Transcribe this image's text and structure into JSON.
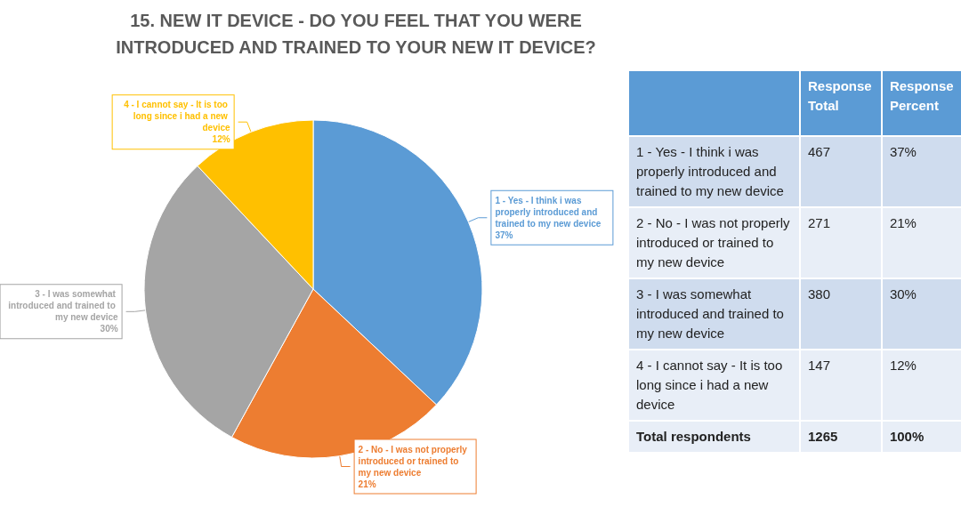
{
  "chart_data": [
    {
      "type": "pie",
      "title": "15. NEW IT DEVICE - DO YOU FEEL THAT YOU WERE INTRODUCED AND TRAINED TO YOUR NEW IT DEVICE?",
      "categories": [
        "1 - Yes - I think i was properly introduced and trained to my new device",
        "2 - No - I was not properly introduced or trained to my new device",
        "3 - I was somewhat introduced and trained to my new device",
        "4 - I cannot say - It is too long since i had a new device"
      ],
      "values": [
        37,
        21,
        30,
        12
      ],
      "value_labels": [
        "37%",
        "21%",
        "30%",
        "12%"
      ],
      "colors": [
        "#5b9bd5",
        "#ed7d31",
        "#a5a5a5",
        "#ffc000"
      ],
      "data_labels": true,
      "legend": false
    },
    {
      "type": "other",
      "categories": [
        "1 - Yes - I think i was properly introduced and trained to my new device",
        "2 - No - I was not properly introduced or trained to my new device",
        "3 - I was somewhat introduced and trained to my new device",
        "4 - I cannot say - It is too long since i had a new device"
      ],
      "series": [
        {
          "name": "Response Total",
          "values": [
            467,
            271,
            380,
            147
          ],
          "colors": [
            "#cfdcee",
            "#e8eef7",
            "#cfdcee",
            "#e8eef7"
          ]
        },
        {
          "name": "Response Percent",
          "values": [
            37,
            21,
            30,
            12
          ],
          "value_labels": [
            "37%",
            "21%",
            "30%",
            "12%"
          ],
          "colors": [
            "#cfdcee",
            "#e8eef7",
            "#cfdcee",
            "#e8eef7"
          ]
        }
      ],
      "annotations": [
        "Total respondents"
      ],
      "totals": [
        "1265",
        "100%"
      ],
      "data_labels": true
    }
  ]
}
